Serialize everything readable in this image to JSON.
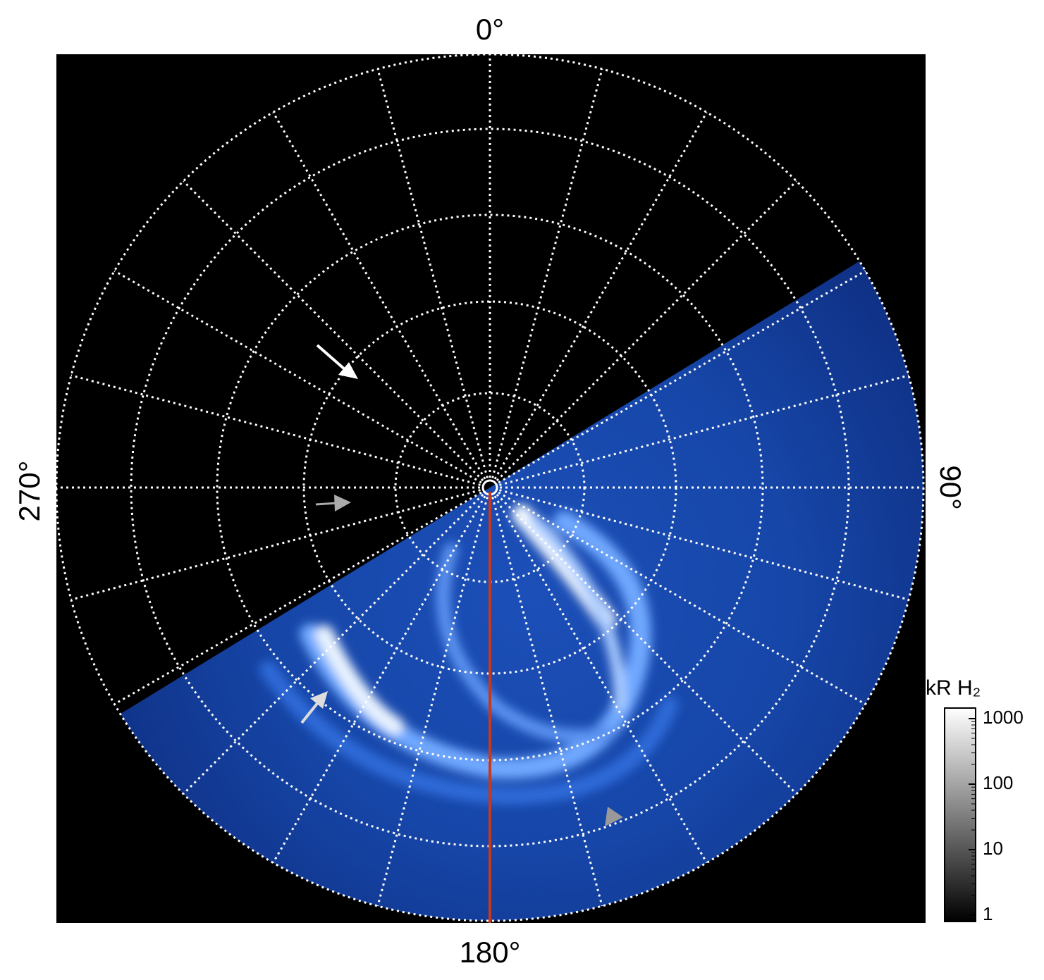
{
  "chart_data": {
    "type": "polar_map",
    "angle_labels": {
      "top": "0°",
      "right": "90°",
      "bottom": "180°",
      "left": "270°"
    },
    "colorbar": {
      "title": "kR H₂",
      "log_scale": true,
      "ylim": [
        0.8,
        1450
      ],
      "yticks": [
        1,
        10,
        100,
        1000
      ]
    }
  }
}
